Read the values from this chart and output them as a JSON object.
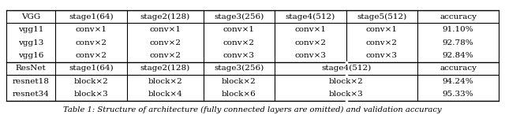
{
  "figsize": [
    6.4,
    1.46
  ],
  "dpi": 100,
  "caption": "Table 1: Structure of architecture (fully connected layers are omitted) and validation accuracy",
  "vgg_header": [
    "VGG",
    "stage1(64)",
    "stage2(128)",
    "stage3(256)",
    "stage4(512)",
    "stage5(512)",
    "accuracy"
  ],
  "vgg_rows": [
    [
      "vgg11",
      "conv×1",
      "conv×1",
      "conv×1",
      "conv×1",
      "conv×1",
      "91.10%"
    ],
    [
      "vgg13",
      "conv×2",
      "conv×2",
      "conv×2",
      "conv×2",
      "conv×2",
      "92.78%"
    ],
    [
      "vgg16",
      "conv×2",
      "conv×2",
      "conv×3",
      "conv×3",
      "conv×3",
      "92.84%"
    ]
  ],
  "resnet_header": [
    "ResNet",
    "stage1(64)",
    "stage2(128)",
    "stage3(256)",
    "stage4(512)",
    "accuracy"
  ],
  "resnet_rows": [
    [
      "resnet18",
      "block×2",
      "block×2",
      "block×2",
      "block×2",
      "94.24%"
    ],
    [
      "resnet34",
      "block×3",
      "block×4",
      "block×6",
      "block×3",
      "95.33%"
    ]
  ],
  "font_size": 7.5,
  "caption_font_size": 7.2,
  "bg_color": "#ffffff",
  "text_color": "#000000"
}
